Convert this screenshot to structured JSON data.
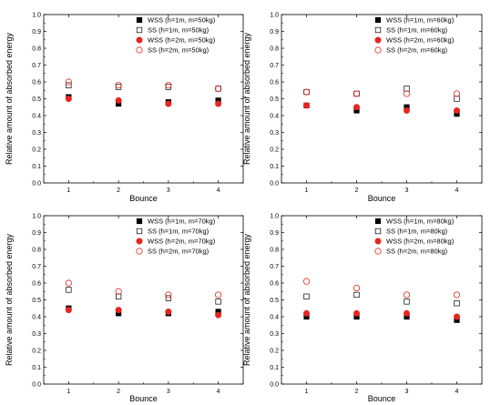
{
  "chart_data": [
    {
      "type": "scatter",
      "xlabel": "Bounce",
      "ylabel": "Relative amount of absorbed energy",
      "x": [
        1,
        2,
        3,
        4
      ],
      "xlim": [
        0.5,
        4.5
      ],
      "ylim": [
        0.0,
        1.0
      ],
      "xticks": [
        "1",
        "2",
        "3",
        "4"
      ],
      "yticks": [
        "0.0",
        "0.1",
        "0.2",
        "0.3",
        "0.4",
        "0.5",
        "0.6",
        "0.7",
        "0.8",
        "0.9",
        "1.0"
      ],
      "legend_position": "top-right",
      "series": [
        {
          "name": "WSS (h=1m, m=50kg)",
          "marker": "filled-square",
          "color": "#000000",
          "values": [
            0.51,
            0.47,
            0.48,
            0.49
          ]
        },
        {
          "name": "SS (h=1m, m=50kg)",
          "marker": "open-square",
          "color": "#000000",
          "values": [
            0.58,
            0.57,
            0.57,
            0.56
          ]
        },
        {
          "name": "WSS (h=2m, m=50kg)",
          "marker": "filled-circle",
          "color": "#e8251f",
          "values": [
            0.5,
            0.49,
            0.47,
            0.47
          ]
        },
        {
          "name": "SS (h=2m, m=50kg)",
          "marker": "open-circle",
          "color": "#e8251f",
          "values": [
            0.6,
            0.58,
            0.58,
            0.56
          ]
        }
      ]
    },
    {
      "type": "scatter",
      "xlabel": "Bounce",
      "ylabel": "Relative amount of absorbed energy",
      "x": [
        1,
        2,
        3,
        4
      ],
      "xlim": [
        0.5,
        4.5
      ],
      "ylim": [
        0.0,
        1.0
      ],
      "xticks": [
        "1",
        "2",
        "3",
        "4"
      ],
      "yticks": [
        "0.0",
        "0.1",
        "0.2",
        "0.3",
        "0.4",
        "0.5",
        "0.6",
        "0.7",
        "0.8",
        "0.9",
        "1.0"
      ],
      "legend_position": "top-right",
      "series": [
        {
          "name": "WSS (h=1m, m=60kg)",
          "marker": "filled-square",
          "color": "#000000",
          "values": [
            0.46,
            0.43,
            0.45,
            0.41
          ]
        },
        {
          "name": "SS (h=1m, m=60kg)",
          "marker": "open-square",
          "color": "#000000",
          "values": [
            0.54,
            0.53,
            0.56,
            0.5
          ]
        },
        {
          "name": "WSS (h=2m, m=60kg)",
          "marker": "filled-circle",
          "color": "#e8251f",
          "values": [
            0.46,
            0.45,
            0.43,
            0.43
          ]
        },
        {
          "name": "SS (h=2m, m=60kg)",
          "marker": "open-circle",
          "color": "#e8251f",
          "values": [
            0.54,
            0.53,
            0.53,
            0.53
          ]
        }
      ]
    },
    {
      "type": "scatter",
      "xlabel": "Bounce",
      "ylabel": "Relative amount of absorbed energy",
      "x": [
        1,
        2,
        3,
        4
      ],
      "xlim": [
        0.5,
        4.5
      ],
      "ylim": [
        0.0,
        1.0
      ],
      "xticks": [
        "1",
        "2",
        "3",
        "4"
      ],
      "yticks": [
        "0.0",
        "0.1",
        "0.2",
        "0.3",
        "0.4",
        "0.5",
        "0.6",
        "0.7",
        "0.8",
        "0.9",
        "1.0"
      ],
      "legend_position": "top-right",
      "series": [
        {
          "name": "WSS (h=1m, m=70kg)",
          "marker": "filled-square",
          "color": "#000000",
          "values": [
            0.45,
            0.42,
            0.42,
            0.43
          ]
        },
        {
          "name": "SS (h=1m, m=70kg)",
          "marker": "open-square",
          "color": "#000000",
          "values": [
            0.56,
            0.52,
            0.51,
            0.49
          ]
        },
        {
          "name": "WSS (h=2m, m=70kg)",
          "marker": "filled-circle",
          "color": "#e8251f",
          "values": [
            0.44,
            0.44,
            0.43,
            0.41
          ]
        },
        {
          "name": "SS (h=2m, m=70kg)",
          "marker": "open-circle",
          "color": "#e8251f",
          "values": [
            0.6,
            0.55,
            0.53,
            0.53
          ]
        }
      ]
    },
    {
      "type": "scatter",
      "xlabel": "Bounce",
      "ylabel": "Relative amount of absorbed energy",
      "x": [
        1,
        2,
        3,
        4
      ],
      "xlim": [
        0.5,
        4.5
      ],
      "ylim": [
        0.0,
        1.0
      ],
      "xticks": [
        "1",
        "2",
        "3",
        "4"
      ],
      "yticks": [
        "0.0",
        "0.1",
        "0.2",
        "0.3",
        "0.4",
        "0.5",
        "0.6",
        "0.7",
        "0.8",
        "0.9",
        "1.0"
      ],
      "legend_position": "top-right",
      "series": [
        {
          "name": "WSS (h=1m, m=80kg)",
          "marker": "filled-square",
          "color": "#000000",
          "values": [
            0.4,
            0.4,
            0.4,
            0.38
          ]
        },
        {
          "name": "SS (h=1m, m=80kg)",
          "marker": "open-square",
          "color": "#000000",
          "values": [
            0.52,
            0.53,
            0.49,
            0.48
          ]
        },
        {
          "name": "WSS (h=2m, m=80kg)",
          "marker": "filled-circle",
          "color": "#e8251f",
          "values": [
            0.42,
            0.42,
            0.42,
            0.4
          ]
        },
        {
          "name": "SS (h=2m, m=80kg)",
          "marker": "open-circle",
          "color": "#e8251f",
          "values": [
            0.61,
            0.57,
            0.53,
            0.53
          ]
        }
      ]
    }
  ]
}
